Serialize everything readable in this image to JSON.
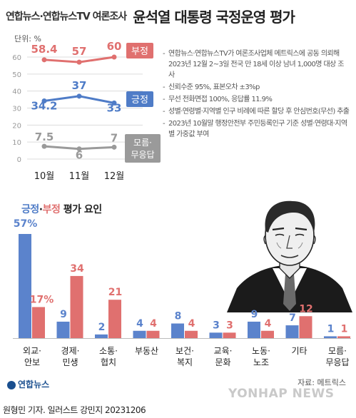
{
  "header": {
    "source_title": "연합뉴스·연합뉴스TV 여론조사",
    "main_title": "윤석열 대통령 국정운영 평가"
  },
  "trend": {
    "unit_label": "단위: %",
    "y_ticks": [
      0,
      10,
      20,
      30,
      40,
      50,
      60
    ],
    "months": [
      "10월",
      "11월",
      "12월"
    ],
    "series": [
      {
        "name": "부정",
        "values": [
          58.4,
          57,
          60
        ],
        "value_labels": [
          "58.4",
          "57",
          "60"
        ],
        "color": "#e0706f"
      },
      {
        "name": "긍정",
        "values": [
          34.2,
          37,
          33
        ],
        "value_labels": [
          "34.2",
          "37",
          "33"
        ],
        "color": "#4f7cc7"
      },
      {
        "name": "모름·무응답",
        "name_lines": [
          "모름·",
          "무응답"
        ],
        "values": [
          7.5,
          6,
          7
        ],
        "value_labels": [
          "7.5",
          "6",
          "7"
        ],
        "color": "#9a9a9a"
      }
    ]
  },
  "notes": [
    "연합뉴스·연합뉴스TV가 여론조사업체 메트릭스에 공동 의뢰해 2023년 12월 2~3일 전국 만 18세 이상 남녀 1,000명 대상 조사",
    "신뢰수준 95%, 표본오차 ±3%p",
    "무선 전화면접 100%, 응답률 11.9%",
    "성별·연령별·지역별 인구 비례에 따른 할당 후 안심번호(무선) 추출",
    "2023년 10월말 행정안전부 주민등록인구 기준 성별·연령대·지역별 가중값 부여"
  ],
  "eval_title": {
    "positive": "긍정",
    "separator": "·",
    "negative": "부정",
    "rest": " 평가 요인"
  },
  "chart_data": {
    "type": "bar",
    "categories": [
      "외교·안보",
      "경제·민생",
      "소통·협치",
      "부동산",
      "보건·복지",
      "교육·문화",
      "노동·노조",
      "기타",
      "모름·무응답"
    ],
    "category_lines": [
      [
        "외교·",
        "안보"
      ],
      [
        "경제·",
        "민생"
      ],
      [
        "소통·",
        "협치"
      ],
      [
        "부동산"
      ],
      [
        "보건·",
        "복지"
      ],
      [
        "교육·",
        "문화"
      ],
      [
        "노동·",
        "노조"
      ],
      [
        "기타"
      ],
      [
        "모름·",
        "무응답"
      ]
    ],
    "series": [
      {
        "name": "긍정",
        "values": [
          57,
          9,
          2,
          4,
          8,
          3,
          9,
          7,
          1
        ],
        "value_labels": [
          "57%",
          "9",
          "2",
          "4",
          "8",
          "3",
          "9",
          "7",
          "1"
        ],
        "color": "#5b83cc"
      },
      {
        "name": "부정",
        "values": [
          17,
          34,
          21,
          4,
          4,
          3,
          4,
          12,
          1
        ],
        "value_labels": [
          "17%",
          "34",
          "21",
          "4",
          "4",
          "3",
          "4",
          "12",
          "1"
        ],
        "color": "#e0706f"
      }
    ]
  },
  "footer": {
    "logo_text": "연합뉴스",
    "source": "자료: 메트릭스",
    "watermark": "YONHAP NEWS",
    "credit": "원형민 기자. 일러스트 강민지  20231206"
  }
}
